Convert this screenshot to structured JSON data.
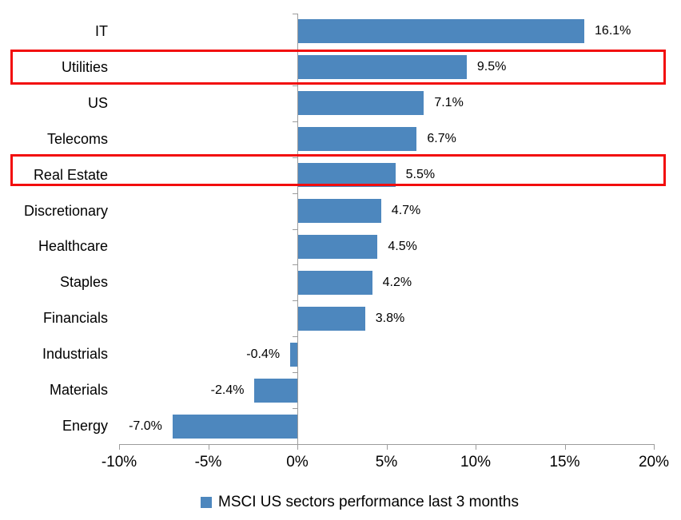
{
  "chart_data": {
    "type": "bar",
    "orientation": "horizontal",
    "categories": [
      "IT",
      "Utilities",
      "US",
      "Telecoms",
      "Real Estate",
      "Discretionary",
      "Healthcare",
      "Staples",
      "Financials",
      "Industrials",
      "Materials",
      "Energy"
    ],
    "values": [
      16.1,
      9.5,
      7.1,
      6.7,
      5.5,
      4.7,
      4.5,
      4.2,
      3.8,
      -0.4,
      -2.4,
      -7.0
    ],
    "value_labels": [
      "16.1%",
      "9.5%",
      "7.1%",
      "6.7%",
      "5.5%",
      "4.7%",
      "4.5%",
      "4.2%",
      "3.8%",
      "-0.4%",
      "-2.4%",
      "-7.0%"
    ],
    "x_ticks": [
      {
        "value": -10,
        "label": "-10%"
      },
      {
        "value": -5,
        "label": "-5%"
      },
      {
        "value": 0,
        "label": "0%"
      },
      {
        "value": 5,
        "label": "5%"
      },
      {
        "value": 10,
        "label": "10%"
      },
      {
        "value": 15,
        "label": "15%"
      },
      {
        "value": 20,
        "label": "20%"
      }
    ],
    "xlim": [
      -10,
      20
    ],
    "grid": false,
    "legend": "MSCI US sectors performance last 3 months",
    "legend_position": "bottom",
    "bar_color": "#4d87be",
    "axis_color": "#9c9c9c",
    "highlight_color": "#f20d0d",
    "highlighted_categories": [
      "Utilities",
      "Real Estate"
    ]
  }
}
